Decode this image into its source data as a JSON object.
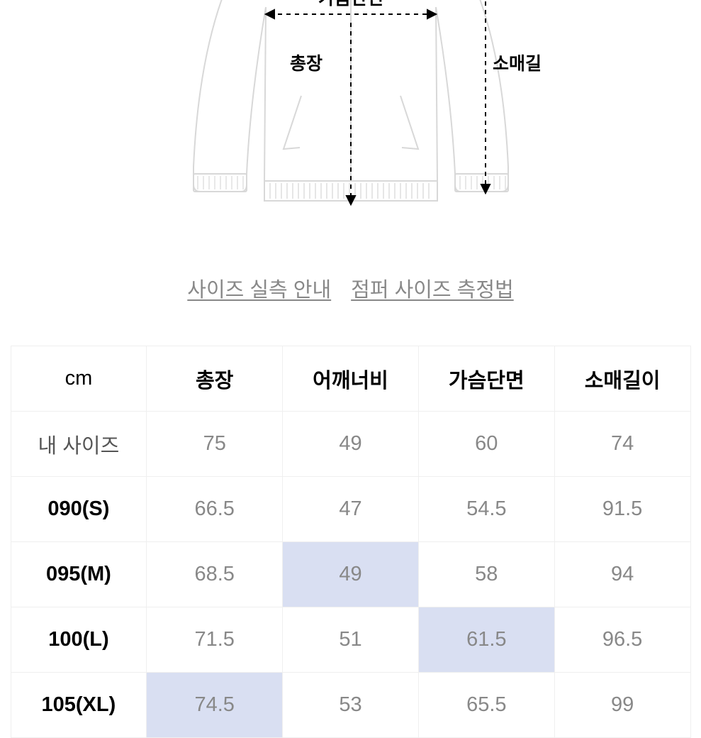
{
  "diagram": {
    "label_chest": "가슴단면",
    "label_length": "총장",
    "label_sleeve": "소매길이",
    "stroke_color": "#d8d8d8",
    "label_color": "#000000",
    "dash_color": "#000000"
  },
  "links": {
    "size_guide": "사이즈 실측 안내",
    "measure_guide": "점퍼 사이즈 측정법"
  },
  "table": {
    "unit_header": "cm",
    "columns": [
      "총장",
      "어깨너비",
      "가슴단면",
      "소매길이"
    ],
    "rows": [
      {
        "label": "내 사이즈",
        "muted": true,
        "values": [
          "75",
          "49",
          "60",
          "74"
        ],
        "highlight": [
          false,
          false,
          false,
          false
        ]
      },
      {
        "label": "090(S)",
        "muted": false,
        "values": [
          "66.5",
          "47",
          "54.5",
          "91.5"
        ],
        "highlight": [
          false,
          false,
          false,
          false
        ]
      },
      {
        "label": "095(M)",
        "muted": false,
        "values": [
          "68.5",
          "49",
          "58",
          "94"
        ],
        "highlight": [
          false,
          true,
          false,
          false
        ]
      },
      {
        "label": "100(L)",
        "muted": false,
        "values": [
          "71.5",
          "51",
          "61.5",
          "96.5"
        ],
        "highlight": [
          false,
          false,
          true,
          false
        ]
      },
      {
        "label": "105(XL)",
        "muted": false,
        "values": [
          "74.5",
          "53",
          "65.5",
          "99"
        ],
        "highlight": [
          true,
          false,
          false,
          false
        ]
      }
    ],
    "colors": {
      "border": "#efefef",
      "header_text": "#000000",
      "row_label_text": "#000000",
      "value_text": "#888888",
      "highlight_bg": "#d9dff2",
      "background": "#ffffff"
    }
  }
}
